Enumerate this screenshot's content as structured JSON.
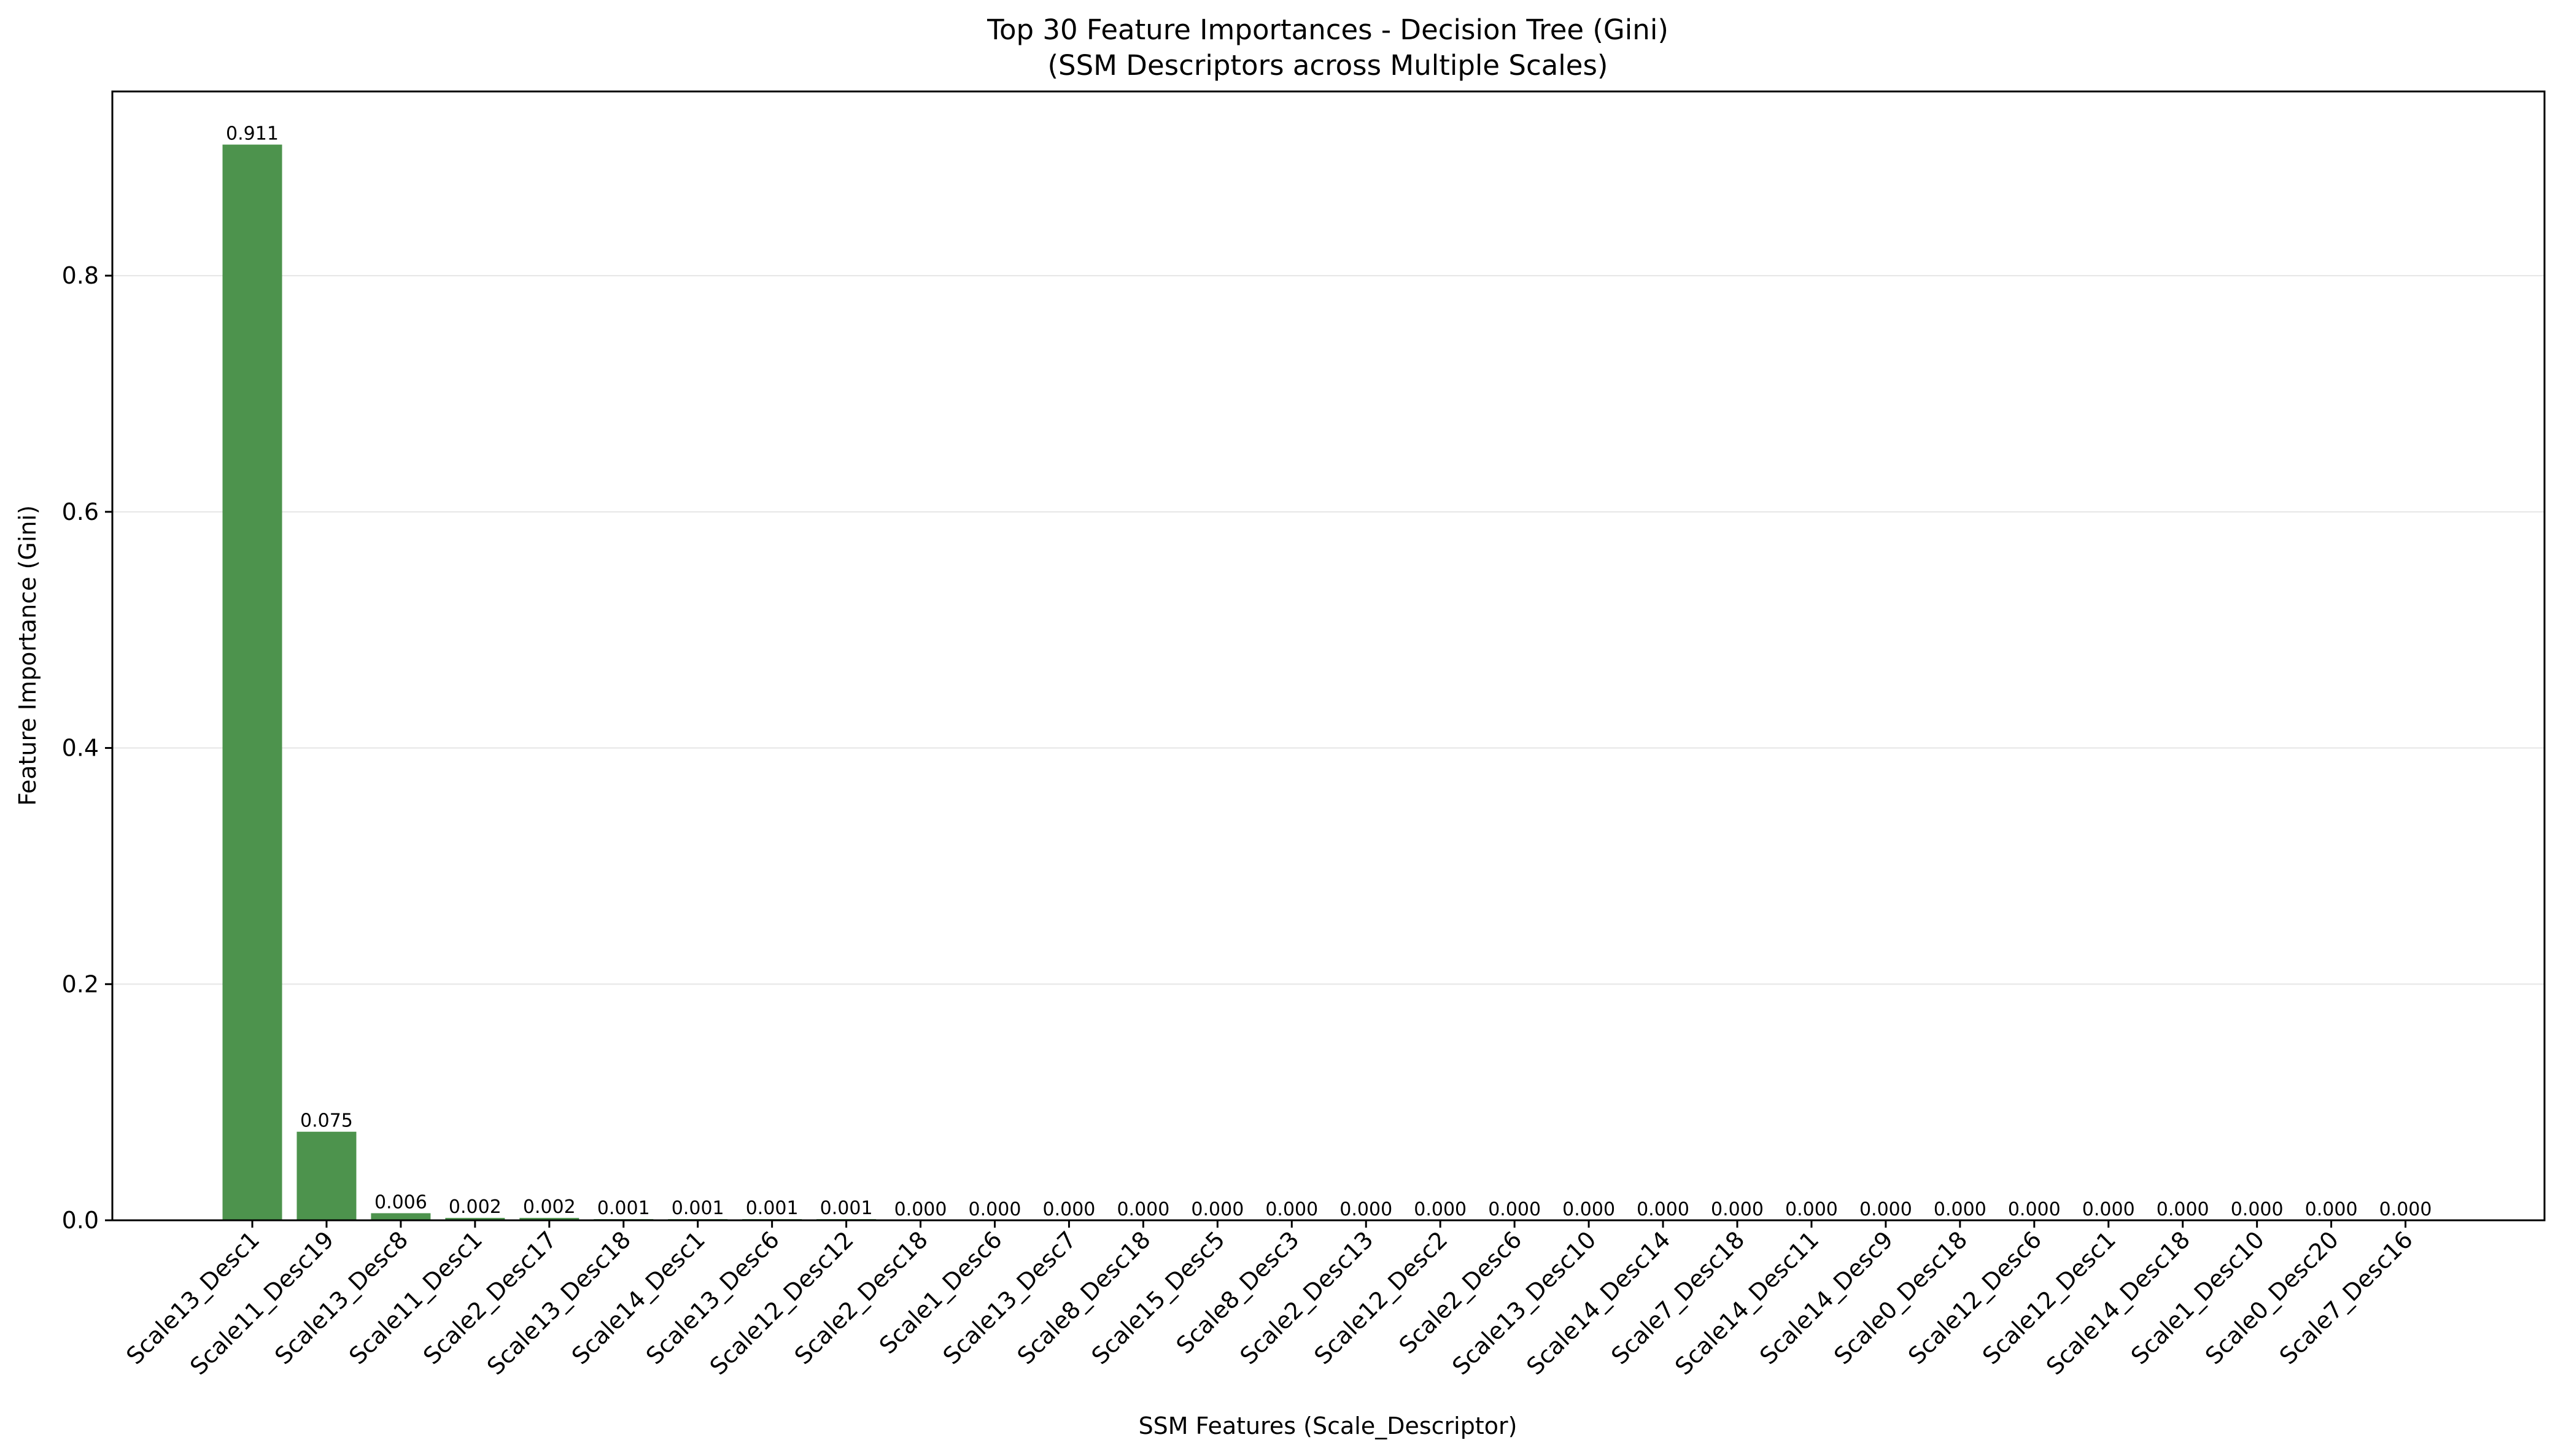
{
  "chart_data": {
    "type": "bar",
    "title": "Top 30 Feature Importances - Decision Tree (Gini)",
    "subtitle": "(SSM Descriptors across Multiple Scales)",
    "xlabel": "SSM Features (Scale_Descriptor)",
    "ylabel": "Feature Importance (Gini)",
    "ylim": [
      0,
      0.956
    ],
    "yticks": [
      0.0,
      0.2,
      0.4,
      0.6,
      0.8
    ],
    "ytick_labels": [
      "0.0",
      "0.2",
      "0.4",
      "0.6",
      "0.8"
    ],
    "grid": "y",
    "bar_color": "#4d934d",
    "categories": [
      "Scale13_Desc1",
      "Scale11_Desc19",
      "Scale13_Desc8",
      "Scale11_Desc1",
      "Scale2_Desc17",
      "Scale13_Desc18",
      "Scale14_Desc1",
      "Scale13_Desc6",
      "Scale12_Desc12",
      "Scale2_Desc18",
      "Scale1_Desc6",
      "Scale13_Desc7",
      "Scale8_Desc18",
      "Scale15_Desc5",
      "Scale8_Desc3",
      "Scale2_Desc13",
      "Scale12_Desc2",
      "Scale2_Desc6",
      "Scale13_Desc10",
      "Scale14_Desc14",
      "Scale7_Desc18",
      "Scale14_Desc11",
      "Scale14_Desc9",
      "Scale0_Desc18",
      "Scale12_Desc6",
      "Scale12_Desc1",
      "Scale14_Desc18",
      "Scale1_Desc10",
      "Scale0_Desc20",
      "Scale7_Desc16"
    ],
    "values": [
      0.911,
      0.075,
      0.006,
      0.002,
      0.002,
      0.001,
      0.001,
      0.001,
      0.001,
      0.0,
      0.0,
      0.0,
      0.0,
      0.0,
      0.0,
      0.0,
      0.0,
      0.0,
      0.0,
      0.0,
      0.0,
      0.0,
      0.0,
      0.0,
      0.0,
      0.0,
      0.0,
      0.0,
      0.0,
      0.0
    ],
    "value_labels": [
      "0.911",
      "0.075",
      "0.006",
      "0.002",
      "0.002",
      "0.001",
      "0.001",
      "0.001",
      "0.001",
      "0.000",
      "0.000",
      "0.000",
      "0.000",
      "0.000",
      "0.000",
      "0.000",
      "0.000",
      "0.000",
      "0.000",
      "0.000",
      "0.000",
      "0.000",
      "0.000",
      "0.000",
      "0.000",
      "0.000",
      "0.000",
      "0.000",
      "0.000",
      "0.000"
    ]
  }
}
